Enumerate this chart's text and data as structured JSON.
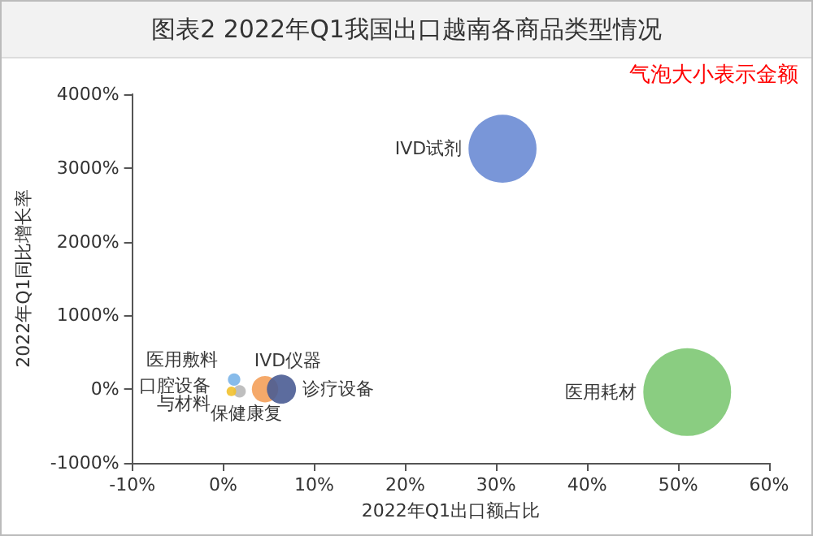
{
  "chart_data": {
    "type": "bubble",
    "title": "图表2  2022年Q1我国出口越南各商品类型情况",
    "xlabel": "2022年Q1出口额占比",
    "ylabel": "2022年Q1同比增长率",
    "annotations": [
      "气泡大小表示金额"
    ],
    "series": [
      {
        "name": "IVD试剂",
        "color": "#6a8bd4",
        "x": [
          30.7
        ],
        "values": [
          3260
        ],
        "sizes": [
          0.6
        ]
      },
      {
        "name": "医用耗材",
        "color": "#7dc873",
        "x": [
          51
        ],
        "values": [
          -40
        ],
        "sizes": [
          1
        ]
      },
      {
        "name": "诊疗设备",
        "color": "#4a5c94",
        "x": [
          6.4
        ],
        "values": [
          0
        ],
        "sizes": [
          0.11
        ]
      },
      {
        "name": "IVD仪器",
        "color": "#f4a05a",
        "x": [
          4.6
        ],
        "values": [
          0
        ],
        "sizes": [
          0.09
        ]
      },
      {
        "name": "医用敷料",
        "color": "#7ab4e8",
        "x": [
          1.2
        ],
        "values": [
          130
        ],
        "sizes": [
          0.02
        ]
      },
      {
        "name": "口腔设备与材料",
        "color": "#f2c12e",
        "x": [
          0.9
        ],
        "values": [
          -30
        ],
        "sizes": [
          0.012
        ]
      },
      {
        "name": "保健康复",
        "color": "#b8b8b8",
        "x": [
          1.8
        ],
        "values": [
          -30
        ],
        "sizes": [
          0.02
        ]
      }
    ],
    "xlim": [
      -10,
      60
    ],
    "xticks": [
      {
        "value": -10,
        "label": "-10%"
      },
      {
        "value": 0,
        "label": "0%"
      },
      {
        "value": 10,
        "label": "10%"
      },
      {
        "value": 20,
        "label": "20%"
      },
      {
        "value": 30,
        "label": "30%"
      },
      {
        "value": 40,
        "label": "40%"
      },
      {
        "value": 50,
        "label": "50%"
      },
      {
        "value": 60,
        "label": "60%"
      }
    ],
    "ylim": [
      -1000,
      4000
    ],
    "yticks": [
      {
        "value": -1000,
        "label": "-1000%"
      },
      {
        "value": 0,
        "label": "0%"
      },
      {
        "value": 1000,
        "label": "1000%"
      },
      {
        "value": 2000,
        "label": "2000%"
      },
      {
        "value": 3000,
        "label": "3000%"
      },
      {
        "value": 4000,
        "label": "4000%"
      }
    ],
    "grid": false,
    "legend": false
  }
}
